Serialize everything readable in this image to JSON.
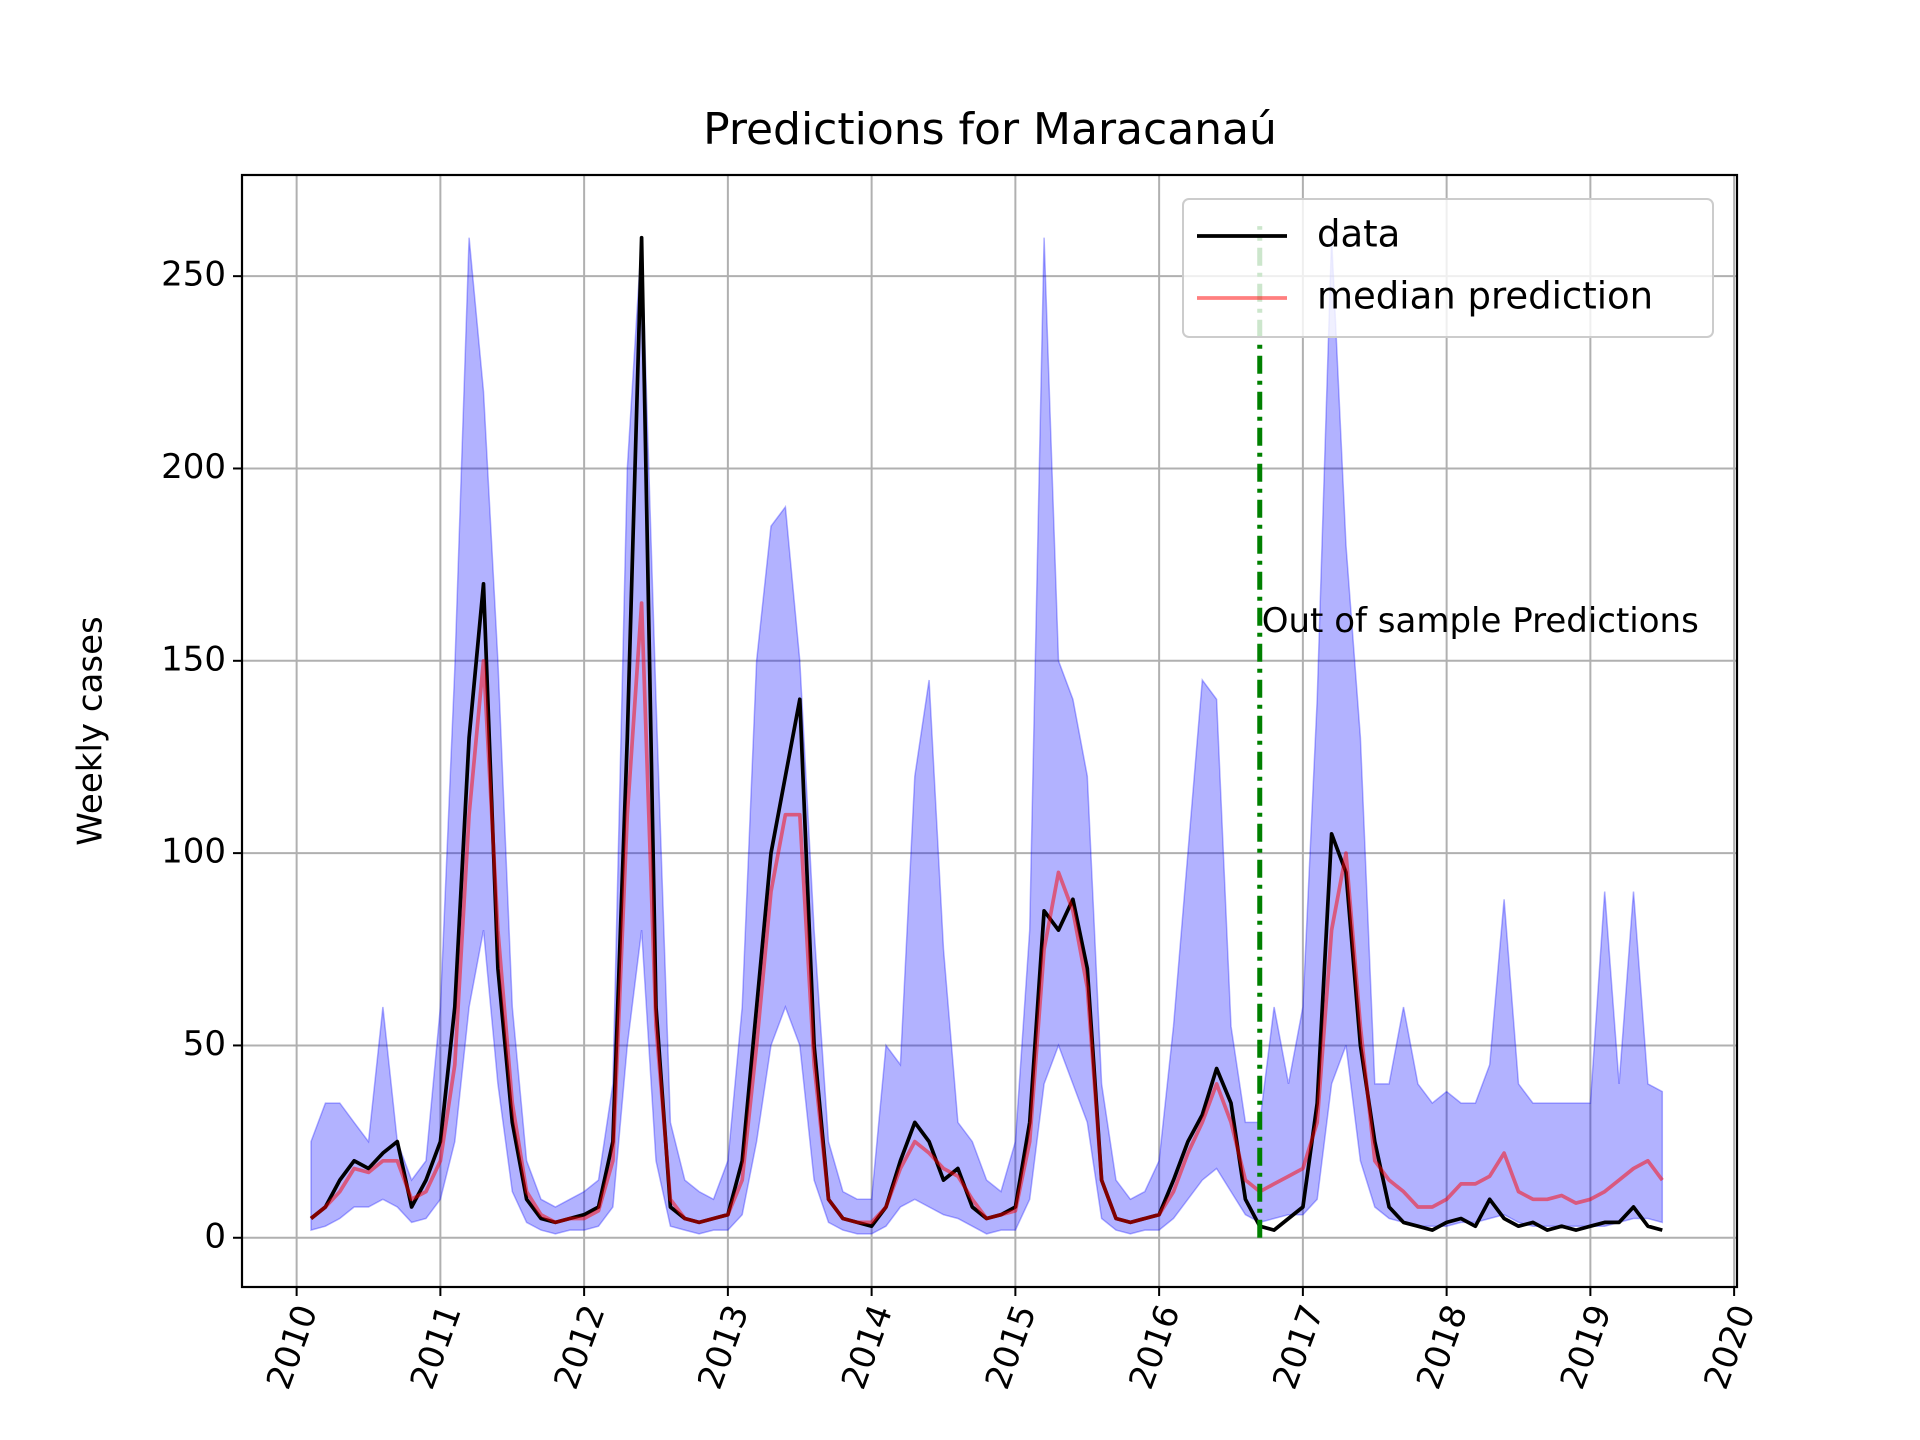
{
  "chart_data": {
    "type": "line",
    "title": "Predictions for Maracanaú",
    "ylabel": "Weekly cases",
    "xlim": [
      2009.62,
      2020.02
    ],
    "ylim": [
      -12.8,
      276.3
    ],
    "xticks": [
      2010,
      2011,
      2012,
      2013,
      2014,
      2015,
      2016,
      2017,
      2018,
      2019,
      2020
    ],
    "yticks": [
      0,
      50,
      100,
      150,
      200,
      250
    ],
    "grid": true,
    "legend": "upper right",
    "x": [
      2010.1,
      2010.2,
      2010.3,
      2010.4,
      2010.5,
      2010.6,
      2010.7,
      2010.8,
      2010.9,
      2011.0,
      2011.1,
      2011.2,
      2011.3,
      2011.4,
      2011.5,
      2011.6,
      2011.7,
      2011.8,
      2011.9,
      2012.0,
      2012.1,
      2012.2,
      2012.3,
      2012.4,
      2012.5,
      2012.6,
      2012.7,
      2012.8,
      2012.9,
      2013.0,
      2013.1,
      2013.2,
      2013.3,
      2013.4,
      2013.5,
      2013.6,
      2013.7,
      2013.8,
      2013.9,
      2014.0,
      2014.1,
      2014.2,
      2014.3,
      2014.4,
      2014.5,
      2014.6,
      2014.7,
      2014.8,
      2014.9,
      2015.0,
      2015.1,
      2015.2,
      2015.3,
      2015.4,
      2015.5,
      2015.6,
      2015.7,
      2015.8,
      2015.9,
      2016.0,
      2016.1,
      2016.2,
      2016.3,
      2016.4,
      2016.5,
      2016.6,
      2016.7,
      2016.8,
      2016.9,
      2017.0,
      2017.1,
      2017.2,
      2017.3,
      2017.4,
      2017.5,
      2017.6,
      2017.7,
      2017.8,
      2017.9,
      2018.0,
      2018.1,
      2018.2,
      2018.3,
      2018.4,
      2018.5,
      2018.6,
      2018.7,
      2018.8,
      2018.9,
      2019.0,
      2019.1,
      2019.2,
      2019.3,
      2019.4,
      2019.5
    ],
    "band": {
      "color": "blue",
      "alpha": 0.3,
      "lower": [
        2,
        3,
        5,
        8,
        8,
        10,
        8,
        4,
        5,
        10,
        25,
        60,
        80,
        40,
        12,
        4,
        2,
        1,
        2,
        2,
        3,
        8,
        50,
        80,
        20,
        3,
        2,
        1,
        2,
        2,
        6,
        25,
        50,
        60,
        50,
        15,
        4,
        2,
        1,
        1,
        3,
        8,
        10,
        8,
        6,
        5,
        3,
        1,
        2,
        2,
        10,
        40,
        50,
        40,
        30,
        5,
        2,
        1,
        2,
        2,
        5,
        10,
        15,
        18,
        12,
        6,
        4,
        5,
        6,
        6,
        10,
        40,
        50,
        20,
        8,
        5,
        4,
        3,
        3,
        3,
        4,
        4,
        5,
        6,
        4,
        3,
        3,
        3,
        3,
        3,
        3,
        4,
        5,
        5,
        4
      ],
      "upper": [
        25,
        35,
        35,
        30,
        25,
        60,
        25,
        15,
        20,
        60,
        148,
        260,
        220,
        150,
        60,
        20,
        10,
        8,
        10,
        12,
        15,
        40,
        200,
        260,
        140,
        30,
        15,
        12,
        10,
        20,
        60,
        150,
        185,
        190,
        150,
        80,
        25,
        12,
        10,
        10,
        50,
        45,
        120,
        145,
        75,
        30,
        25,
        15,
        12,
        25,
        80,
        260,
        150,
        140,
        120,
        40,
        15,
        10,
        12,
        20,
        55,
        100,
        145,
        140,
        55,
        30,
        30,
        60,
        40,
        60,
        140,
        260,
        180,
        130,
        40,
        40,
        60,
        40,
        35,
        38,
        35,
        35,
        45,
        88,
        40,
        35,
        35,
        35,
        35,
        35,
        90,
        40,
        90,
        40,
        38
      ]
    },
    "series": [
      {
        "name": "data",
        "color": "#000000",
        "alpha": 1,
        "values": [
          5,
          8,
          15,
          20,
          18,
          22,
          25,
          8,
          15,
          25,
          60,
          130,
          170,
          70,
          30,
          10,
          5,
          4,
          5,
          6,
          8,
          25,
          130,
          260,
          60,
          8,
          5,
          4,
          5,
          6,
          20,
          60,
          100,
          120,
          140,
          50,
          10,
          5,
          4,
          3,
          8,
          20,
          30,
          25,
          15,
          18,
          8,
          5,
          6,
          8,
          30,
          85,
          80,
          88,
          70,
          15,
          5,
          4,
          5,
          6,
          15,
          25,
          32,
          44,
          35,
          10,
          3,
          2,
          5,
          8,
          35,
          105,
          95,
          50,
          25,
          8,
          4,
          3,
          2,
          4,
          5,
          3,
          10,
          5,
          3,
          4,
          2,
          3,
          2,
          3,
          4,
          4,
          8,
          3,
          2
        ]
      },
      {
        "name": "median prediction",
        "color": "#ff0000",
        "alpha": 0.5,
        "values": [
          5,
          8,
          12,
          18,
          17,
          20,
          20,
          10,
          12,
          20,
          45,
          110,
          150,
          80,
          35,
          12,
          6,
          4,
          5,
          5,
          7,
          20,
          110,
          165,
          55,
          10,
          5,
          4,
          5,
          6,
          15,
          50,
          90,
          110,
          110,
          45,
          10,
          5,
          4,
          4,
          8,
          18,
          25,
          22,
          18,
          16,
          10,
          5,
          6,
          7,
          25,
          75,
          95,
          85,
          65,
          15,
          5,
          4,
          5,
          6,
          12,
          22,
          30,
          40,
          30,
          15,
          12,
          14,
          16,
          18,
          30,
          80,
          100,
          55,
          20,
          15,
          12,
          8,
          8,
          10,
          14,
          14,
          16,
          22,
          12,
          10,
          10,
          11,
          9,
          10,
          12,
          15,
          18,
          20,
          15
        ]
      }
    ],
    "vline": {
      "x": 2016.7,
      "ymin": 0,
      "ymax": 263,
      "color": "green"
    },
    "annotation": {
      "text": "Out of sample Predictions",
      "x": 2016.7,
      "y": 160
    }
  }
}
